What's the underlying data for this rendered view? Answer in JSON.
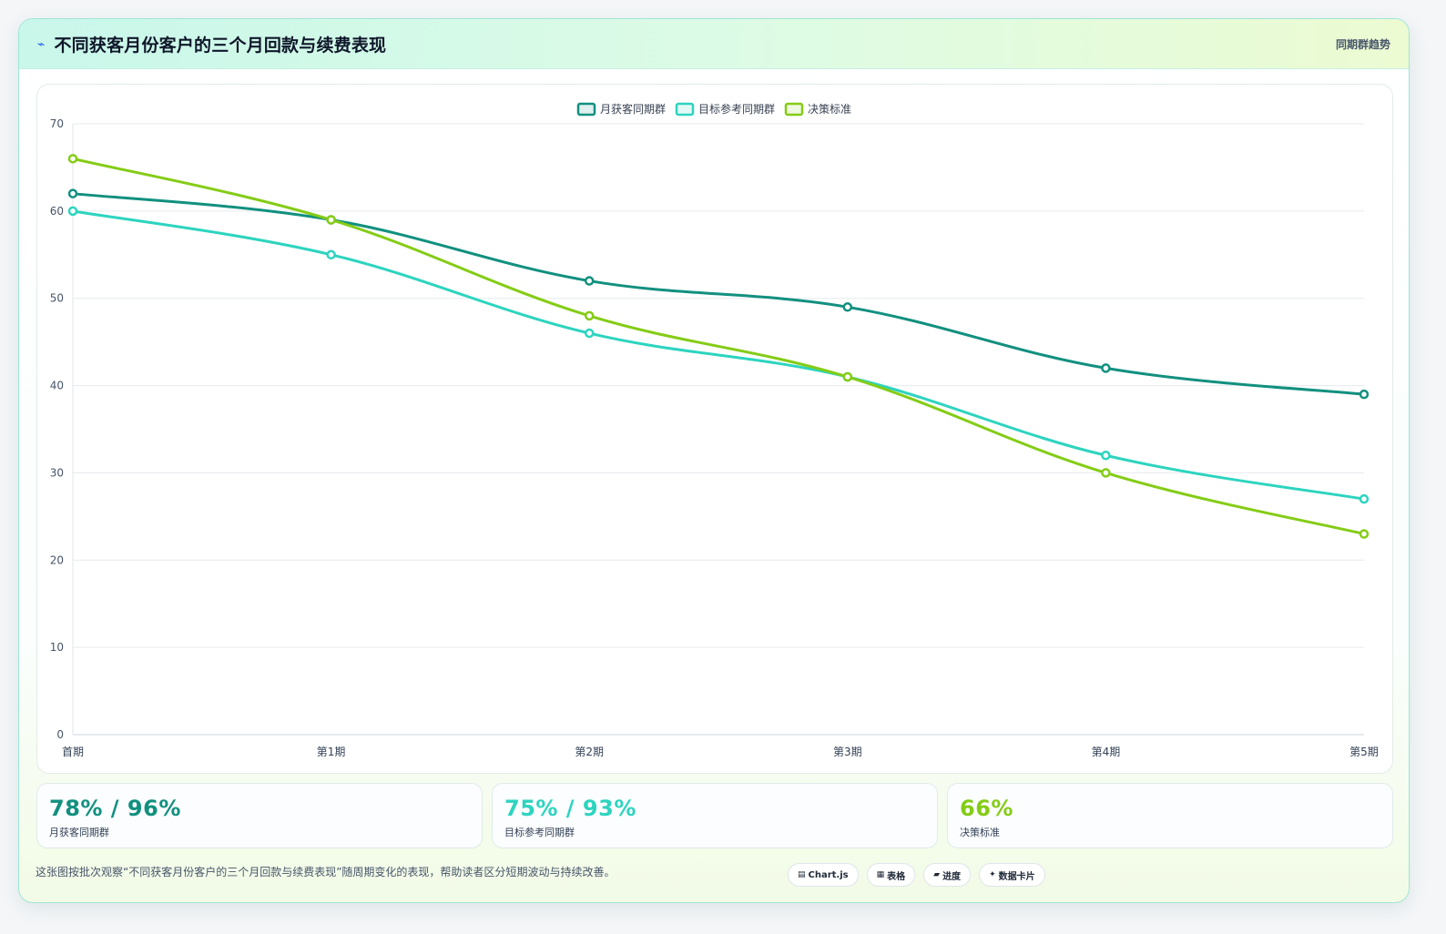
{
  "header": {
    "title": "不同获客月份客户的三个月回款与续费表现",
    "tag": "同期群趋势"
  },
  "chart_data": {
    "type": "line",
    "title": "",
    "xlabel": "",
    "ylabel": "",
    "categories": [
      "首期",
      "第1期",
      "第2期",
      "第3期",
      "第4期",
      "第5期"
    ],
    "ylim": [
      0,
      70
    ],
    "yticks": [
      0,
      10,
      20,
      30,
      40,
      50,
      60,
      70
    ],
    "grid": true,
    "legend_position": "top-center",
    "series": [
      {
        "name": "月获客同期群",
        "color": "#12907f",
        "values": [
          62,
          59,
          52,
          49,
          42,
          39
        ]
      },
      {
        "name": "目标参考同期群",
        "color": "#2dd4bf",
        "values": [
          60,
          55,
          46,
          41,
          32,
          27
        ]
      },
      {
        "name": "决策标准",
        "color": "#84cc16",
        "values": [
          66,
          59,
          48,
          41,
          30,
          23
        ]
      }
    ]
  },
  "kpis": [
    {
      "value": "78% / 96%",
      "label": "月获客同期群",
      "color": "#12907f"
    },
    {
      "value": "75% / 93%",
      "label": "目标参考同期群",
      "color": "#2dd4bf"
    },
    {
      "value": "66%",
      "label": "决策标准",
      "color": "#84cc16"
    }
  ],
  "footer": {
    "note": "这张图按批次观察“不同获客月份客户的三个月回款与续费表现”随周期变化的表现，帮助读者区分短期波动与持续改善。"
  },
  "chips": [
    {
      "icon": "chart-icon",
      "glyph": "▤",
      "label": "Chart.js"
    },
    {
      "icon": "table-icon",
      "glyph": "▦",
      "label": "表格"
    },
    {
      "icon": "progress-icon",
      "glyph": "▰",
      "label": "进度"
    },
    {
      "icon": "sparkle-icon",
      "glyph": "✦",
      "label": "数据卡片"
    }
  ]
}
